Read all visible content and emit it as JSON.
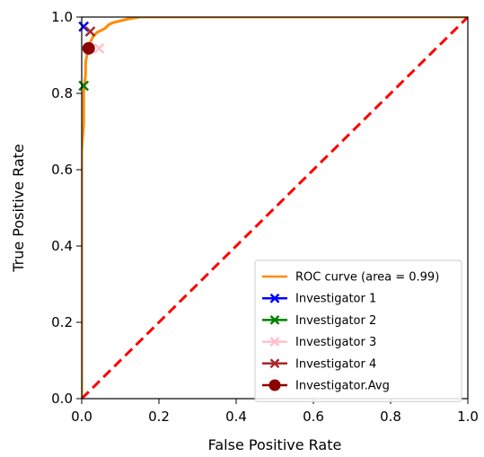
{
  "chart_data": {
    "type": "line",
    "title": "",
    "xlabel": "False Positive Rate",
    "ylabel": "True Positive Rate",
    "xlim": [
      0.0,
      1.0
    ],
    "ylim": [
      0.0,
      1.0
    ],
    "xticks": [
      "0.0",
      "0.2",
      "0.4",
      "0.6",
      "0.8",
      "1.0"
    ],
    "yticks": [
      "0.0",
      "0.2",
      "0.4",
      "0.6",
      "0.8",
      "1.0"
    ],
    "grid": false,
    "legend_position": "lower-right",
    "series": [
      {
        "name": "ROC curve (area = 0.99)",
        "kind": "line",
        "color": "#ff8c00",
        "x": [
          0.0,
          0.0,
          0.005,
          0.005,
          0.01,
          0.01,
          0.015,
          0.02,
          0.025,
          0.03,
          0.04,
          0.05,
          0.06,
          0.07,
          0.08,
          0.1,
          0.12,
          0.15,
          0.2,
          0.4,
          0.6,
          0.8,
          1.0
        ],
        "y": [
          0.0,
          0.65,
          0.72,
          0.8,
          0.85,
          0.88,
          0.91,
          0.93,
          0.94,
          0.95,
          0.96,
          0.965,
          0.97,
          0.98,
          0.985,
          0.99,
          0.995,
          1.0,
          1.0,
          1.0,
          1.0,
          1.0,
          1.0
        ]
      },
      {
        "name": "",
        "kind": "diagonal",
        "color": "#ff0000",
        "x": [
          0.0,
          1.0
        ],
        "y": [
          0.0,
          1.0
        ]
      },
      {
        "name": "Investigator 1",
        "kind": "marker-x",
        "color": "#0000ff",
        "x": [
          0.005
        ],
        "y": [
          0.975
        ]
      },
      {
        "name": "Investigator 2",
        "kind": "marker-x",
        "color": "#008000",
        "x": [
          0.005
        ],
        "y": [
          0.82
        ]
      },
      {
        "name": "Investigator 3",
        "kind": "marker-x",
        "color": "#ffc0cb",
        "x": [
          0.045
        ],
        "y": [
          0.918
        ]
      },
      {
        "name": "Investigator 4",
        "kind": "marker-x",
        "color": "#a52a2a",
        "x": [
          0.022
        ],
        "y": [
          0.962
        ]
      },
      {
        "name": "Investigator.Avg",
        "kind": "marker-circle",
        "color": "#8b0000",
        "x": [
          0.018
        ],
        "y": [
          0.918
        ]
      }
    ],
    "legend": [
      {
        "label": "ROC curve (area = 0.99)",
        "color": "#ff8c00",
        "marker": "none"
      },
      {
        "label": "Investigator 1",
        "color": "#0000ff",
        "marker": "x"
      },
      {
        "label": "Investigator 2",
        "color": "#008000",
        "marker": "x"
      },
      {
        "label": "Investigator 3",
        "color": "#ffc0cb",
        "marker": "x"
      },
      {
        "label": "Investigator 4",
        "color": "#a52a2a",
        "marker": "x"
      },
      {
        "label": "Investigator.Avg",
        "color": "#8b0000",
        "marker": "circle"
      }
    ]
  }
}
